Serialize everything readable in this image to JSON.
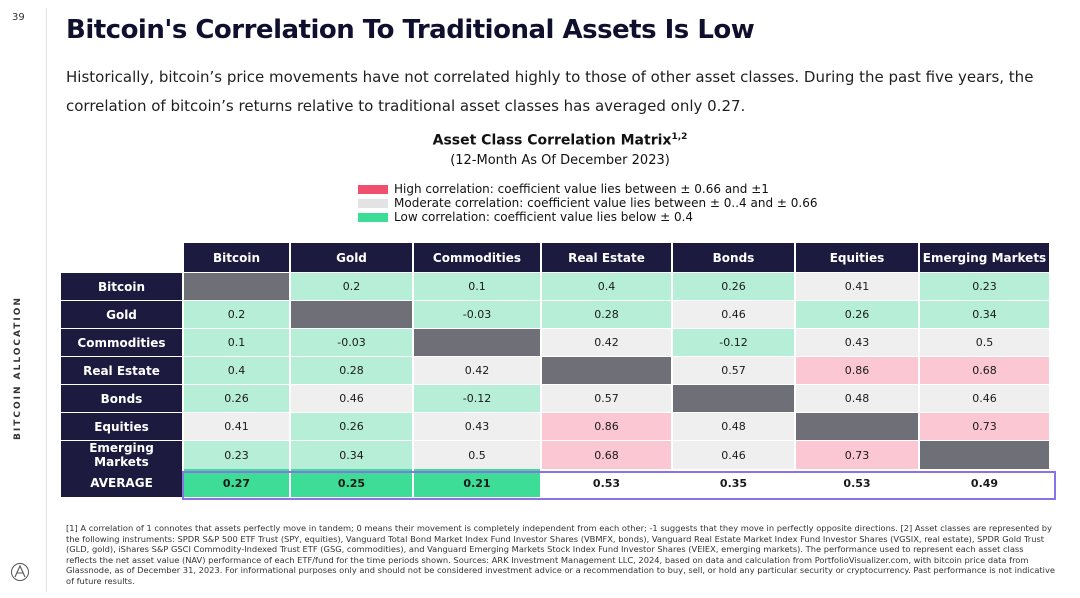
{
  "page_number": "39",
  "side_label": "BITCOIN ALLOCATION",
  "title": "Bitcoin's Correlation To Traditional Assets Is Low",
  "subtitle": "Historically, bitcoin’s price movements have not correlated highly to those of other asset classes. During the past five years, the correlation of bitcoin’s returns relative to traditional asset classes has averaged only 0.27.",
  "chart": {
    "title": "Asset Class Correlation Matrix",
    "title_sup": "1,2",
    "subtitle": "(12-Month As Of December 2023)"
  },
  "legend": [
    {
      "label": "High correlation: coefficient value lies between ± 0.66 and ±1",
      "color": "#f0506e"
    },
    {
      "label": "Moderate correlation: coefficient value lies between ± 0..4 and ± 0.66",
      "color": "#e3e3e6"
    },
    {
      "label": "Low correlation: coefficient value lies below ± 0.4",
      "color": "#3ddc97"
    }
  ],
  "matrix": {
    "columns": [
      "Bitcoin",
      "Gold",
      "Commodities",
      "Real Estate",
      "Bonds",
      "Equities",
      "Emerging Markets"
    ],
    "rows": [
      {
        "label": "Bitcoin",
        "cells": [
          {
            "v": "",
            "c": "diag"
          },
          {
            "v": "0.2",
            "c": "low"
          },
          {
            "v": "0.1",
            "c": "low"
          },
          {
            "v": "0.4",
            "c": "low"
          },
          {
            "v": "0.26",
            "c": "low"
          },
          {
            "v": "0.41",
            "c": "mod"
          },
          {
            "v": "0.23",
            "c": "low"
          }
        ]
      },
      {
        "label": "Gold",
        "cells": [
          {
            "v": "0.2",
            "c": "low"
          },
          {
            "v": "",
            "c": "diag"
          },
          {
            "v": "-0.03",
            "c": "low"
          },
          {
            "v": "0.28",
            "c": "low"
          },
          {
            "v": "0.46",
            "c": "mod"
          },
          {
            "v": "0.26",
            "c": "low"
          },
          {
            "v": "0.34",
            "c": "low"
          }
        ]
      },
      {
        "label": "Commodities",
        "cells": [
          {
            "v": "0.1",
            "c": "low"
          },
          {
            "v": "-0.03",
            "c": "low"
          },
          {
            "v": "",
            "c": "diag"
          },
          {
            "v": "0.42",
            "c": "mod"
          },
          {
            "v": "-0.12",
            "c": "low"
          },
          {
            "v": "0.43",
            "c": "mod"
          },
          {
            "v": "0.5",
            "c": "mod"
          }
        ]
      },
      {
        "label": "Real Estate",
        "cells": [
          {
            "v": "0.4",
            "c": "low"
          },
          {
            "v": "0.28",
            "c": "low"
          },
          {
            "v": "0.42",
            "c": "mod"
          },
          {
            "v": "",
            "c": "diag"
          },
          {
            "v": "0.57",
            "c": "mod"
          },
          {
            "v": "0.86",
            "c": "high"
          },
          {
            "v": "0.68",
            "c": "high"
          }
        ]
      },
      {
        "label": "Bonds",
        "cells": [
          {
            "v": "0.26",
            "c": "low"
          },
          {
            "v": "0.46",
            "c": "mod"
          },
          {
            "v": "-0.12",
            "c": "low"
          },
          {
            "v": "0.57",
            "c": "mod"
          },
          {
            "v": "",
            "c": "diag"
          },
          {
            "v": "0.48",
            "c": "mod"
          },
          {
            "v": "0.46",
            "c": "mod"
          }
        ]
      },
      {
        "label": "Equities",
        "cells": [
          {
            "v": "0.41",
            "c": "mod"
          },
          {
            "v": "0.26",
            "c": "low"
          },
          {
            "v": "0.43",
            "c": "mod"
          },
          {
            "v": "0.86",
            "c": "high"
          },
          {
            "v": "0.48",
            "c": "mod"
          },
          {
            "v": "",
            "c": "diag"
          },
          {
            "v": "0.73",
            "c": "high"
          }
        ]
      },
      {
        "label": "Emerging Markets",
        "cells": [
          {
            "v": "0.23",
            "c": "low"
          },
          {
            "v": "0.34",
            "c": "low"
          },
          {
            "v": "0.5",
            "c": "mod"
          },
          {
            "v": "0.68",
            "c": "high"
          },
          {
            "v": "0.46",
            "c": "mod"
          },
          {
            "v": "0.73",
            "c": "high"
          },
          {
            "v": "",
            "c": "diag"
          }
        ]
      }
    ],
    "average": {
      "label": "AVERAGE",
      "values": [
        "0.27",
        "0.25",
        "0.21",
        "0.53",
        "0.35",
        "0.53",
        "0.49"
      ],
      "classes": [
        "avg-low",
        "avg-low",
        "avg-low",
        "",
        "",
        "",
        ""
      ]
    }
  },
  "footnote": "[1] A correlation of 1 connotes that assets perfectly move in tandem; 0 means their movement is completely independent from each other; -1 suggests that they move in perfectly opposite directions. [2] Asset classes are represented by the following instruments: SPDR S&P 500 ETF Trust (SPY, equities), Vanguard Total Bond Market Index Fund Investor Shares (VBMFX, bonds), Vanguard Real Estate Market Index Fund Investor Shares (VGSIX, real estate), SPDR Gold Trust (GLD, gold), iShares S&P GSCI Commodity-Indexed Trust ETF (GSG, commodities), and Vanguard Emerging Markets Stock Index Fund Investor Shares (VEIEX, emerging markets). The performance used to represent each asset class reflects the net asset value (NAV) performance of each ETF/fund for the time periods shown. Sources: ARK Investment Management LLC, 2024, based on data and calculation from PortfolioVisualizer.com, with bitcoin price data from Glassnode, as of December 31, 2023. For informational purposes only and should not be considered investment advice or a recommendation to buy, sell, or hold any particular security or cryptocurrency. Past performance is not indicative of future results."
}
